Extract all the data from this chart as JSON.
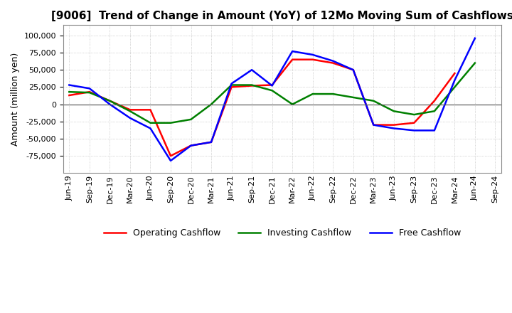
{
  "title": "[9006]  Trend of Change in Amount (YoY) of 12Mo Moving Sum of Cashflows",
  "ylabel": "Amount (million yen)",
  "ylim": [
    -100000,
    115000
  ],
  "yticks": [
    -75000,
    -50000,
    -25000,
    0,
    25000,
    50000,
    75000,
    100000
  ],
  "x_labels": [
    "Jun-19",
    "Sep-19",
    "Dec-19",
    "Mar-20",
    "Jun-20",
    "Sep-20",
    "Dec-20",
    "Mar-21",
    "Jun-21",
    "Sep-21",
    "Dec-21",
    "Mar-22",
    "Jun-22",
    "Sep-22",
    "Dec-22",
    "Mar-23",
    "Jun-23",
    "Sep-23",
    "Dec-23",
    "Mar-24",
    "Jun-24",
    "Sep-24"
  ],
  "operating": [
    13000,
    18000,
    5000,
    -8000,
    -8000,
    -75000,
    -60000,
    -55000,
    25000,
    27000,
    28000,
    65000,
    65000,
    60000,
    50000,
    -30000,
    -30000,
    -27000,
    5000,
    45000,
    null,
    null
  ],
  "investing": [
    18000,
    17000,
    5000,
    -10000,
    -27000,
    -27000,
    -22000,
    0,
    28000,
    28000,
    20000,
    0,
    15000,
    15000,
    10000,
    5000,
    -10000,
    -15000,
    -10000,
    25000,
    60000,
    null
  ],
  "free": [
    28000,
    23000,
    0,
    -20000,
    -35000,
    -82000,
    -60000,
    -55000,
    30000,
    50000,
    27000,
    77000,
    72000,
    63000,
    50000,
    -30000,
    -35000,
    -38000,
    -38000,
    35000,
    96000,
    null
  ],
  "operating_color": "#ff0000",
  "investing_color": "#008000",
  "free_color": "#0000ff",
  "background_color": "#ffffff",
  "grid_color": "#b0b0b0",
  "title_fontsize": 11,
  "label_fontsize": 9,
  "tick_fontsize": 8
}
